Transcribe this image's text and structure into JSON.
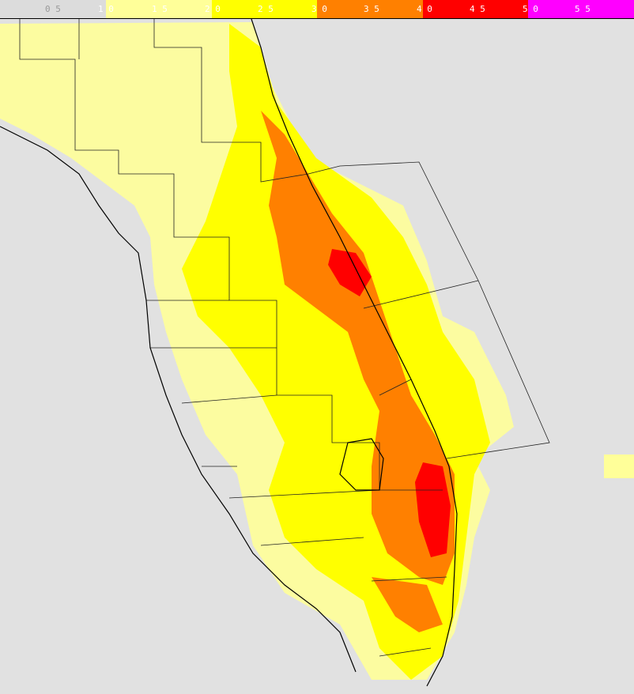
{
  "legend": {
    "labels": [
      "0 5",
      "1 0",
      "1 5",
      "2 0",
      "2 5",
      "3 0",
      "3 5",
      "4 0",
      "4 5",
      "5 0",
      "5 5"
    ]
  }
}
